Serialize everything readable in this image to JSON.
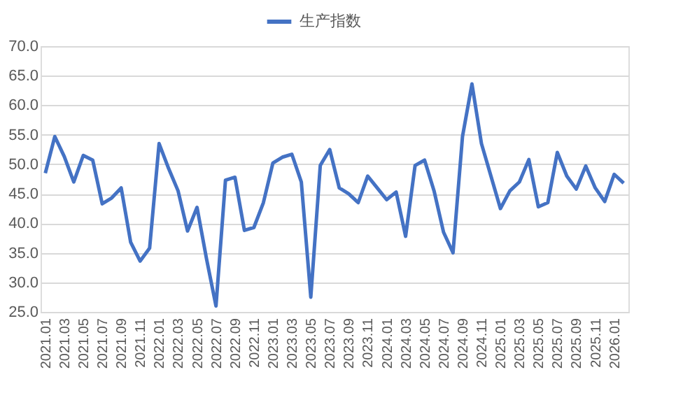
{
  "chart_data": {
    "type": "line",
    "categories": [
      "2021.01",
      null,
      "2021.03",
      null,
      "2021.05",
      null,
      "2021.07",
      null,
      "2021.09",
      null,
      "2021.11",
      null,
      "2022.01",
      null,
      "2022.03",
      null,
      "2022.05",
      null,
      "2022.07",
      null,
      "2022.09",
      null,
      "2022.11",
      null,
      "2023.01",
      null,
      "2023.03",
      null,
      "2023.05",
      null,
      "2023.07",
      null,
      "2023.09",
      null,
      "2023.11",
      null,
      "2024.01",
      null,
      "2024.03",
      null,
      "2024.05",
      null,
      "2024.07",
      null,
      "2024.09",
      null,
      "2024.11",
      null,
      "2025.01",
      null,
      "2025.03",
      null,
      "2025.05",
      null,
      "2025.07",
      null,
      "2025.09",
      null,
      "2025.11",
      null,
      "2026.01",
      null
    ],
    "series": [
      {
        "name": "生产指数",
        "color": "#4472c4",
        "values": [
          48.5,
          54.7,
          51.3,
          47,
          51.5,
          50.7,
          43.3,
          44.3,
          46,
          36.8,
          33.6,
          35.8,
          53.5,
          49.3,
          45.5,
          38.7,
          42.7,
          34,
          26,
          47.3,
          47.8,
          38.8,
          39.3,
          43.5,
          50.2,
          51.2,
          51.7,
          47,
          27.5,
          49.8,
          52.5,
          46,
          45,
          43.5,
          48,
          46,
          44,
          45.3,
          37.8,
          49.8,
          50.7,
          45.5,
          38.5,
          35,
          54.7,
          63.6,
          53.5,
          48,
          42.5,
          45.5,
          47,
          50.8,
          42.8,
          43.5,
          52,
          48,
          45.8,
          49.7,
          46,
          43.7,
          48.3,
          46.8
        ]
      }
    ],
    "ylim": [
      25,
      70
    ],
    "yticks": [
      {
        "value": 25,
        "label": "25.0"
      },
      {
        "value": 30,
        "label": "30.0"
      },
      {
        "value": 35,
        "label": "35.0"
      },
      {
        "value": 40,
        "label": "40.0"
      },
      {
        "value": 45,
        "label": "45.0"
      },
      {
        "value": 50,
        "label": "50.0"
      },
      {
        "value": 55,
        "label": "55.0"
      },
      {
        "value": 60,
        "label": "60.0"
      },
      {
        "value": 65,
        "label": "65.0"
      },
      {
        "value": 70,
        "label": "70.0"
      }
    ],
    "grid": "y",
    "legend": "top",
    "marker": "none",
    "line_style": "solid"
  }
}
